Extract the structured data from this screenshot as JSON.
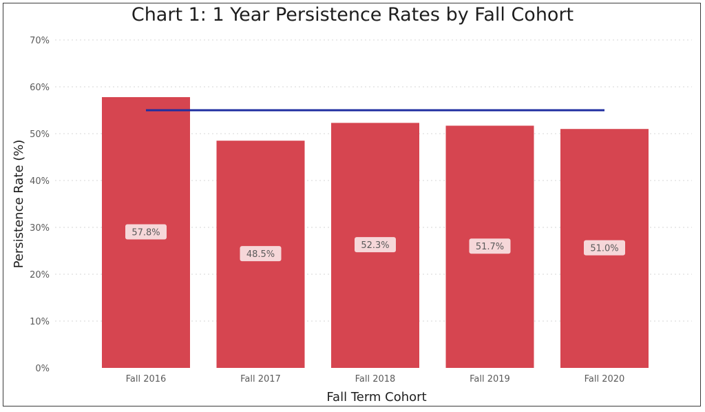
{
  "chart_data": {
    "type": "bar",
    "title": "Chart 1: 1 Year Persistence Rates by Fall Cohort",
    "xlabel": "Fall Term Cohort",
    "ylabel": "Persistence Rate (%)",
    "categories": [
      "Fall 2016",
      "Fall 2017",
      "Fall 2018",
      "Fall 2019",
      "Fall 2020"
    ],
    "values": [
      57.8,
      48.5,
      52.3,
      51.7,
      51.0
    ],
    "data_labels": [
      "57.8%",
      "48.5%",
      "52.3%",
      "51.7%",
      "51.0%"
    ],
    "ylim": [
      0,
      70
    ],
    "yticks": [
      0,
      10,
      20,
      30,
      40,
      50,
      60,
      70
    ],
    "ytick_labels": [
      "0%",
      "10%",
      "20%",
      "30%",
      "40%",
      "50%",
      "60%",
      "70%"
    ],
    "reference_line": {
      "value": 55,
      "color": "#1f2ea0"
    },
    "bar_color": "#d64550",
    "grid": true,
    "legend": "none"
  }
}
